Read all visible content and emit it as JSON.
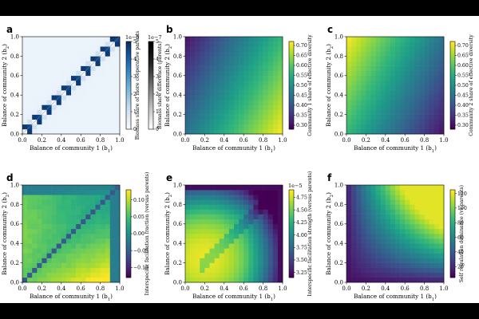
{
  "chart_data": [
    {
      "panel": "a",
      "type": "heatmap",
      "xlabel": "Balance of community 1 (b1)",
      "ylabel": "Balance of community 2 (b2)",
      "xlim": [
        0,
        1
      ],
      "ylim": [
        0,
        1
      ],
      "xticks": [
        "0.0",
        "0.2",
        "0.4",
        "0.6",
        "0.8",
        "1.0"
      ],
      "yticks": [
        "0.0",
        "0.2",
        "0.4",
        "0.6",
        "0.8",
        "1.0"
      ],
      "grid_n": 20,
      "pattern": "diagonal_checker",
      "colorbars": [
        {
          "label": "Biomass share of more cooperative parents",
          "cmap": "blues",
          "min": 0,
          "max": 5,
          "ticks": [
            "0",
            "1",
            "2",
            "3",
            "4",
            "5"
          ],
          "exponent": "1e−5"
        },
        {
          "label": "Biomass share difference (parents)",
          "cmap": "greys",
          "min": 0,
          "max": 5,
          "ticks": [
            "0",
            "1",
            "2",
            "3",
            "4",
            "5"
          ],
          "exponent": "1e−7"
        }
      ]
    },
    {
      "panel": "b",
      "type": "heatmap",
      "xlabel": "Balance of community 1 (b1)",
      "ylabel": "Balance of community 2 (b2)",
      "xlim": [
        0,
        1
      ],
      "ylim": [
        0,
        1
      ],
      "xticks": [
        "0.0",
        "0.2",
        "0.4",
        "0.6",
        "0.8",
        "1.0"
      ],
      "yticks": [
        "0.0",
        "0.2",
        "0.4",
        "0.6",
        "0.8",
        "1.0"
      ],
      "grid_n": 20,
      "pattern": "gradient_b1",
      "vmin": 0.28,
      "vmax": 0.72,
      "colorbars": [
        {
          "label": "Community 1 share of effective diversity",
          "cmap": "viridis",
          "min": 0.28,
          "max": 0.72,
          "ticks": [
            "0.30",
            "0.35",
            "0.40",
            "0.45",
            "0.50",
            "0.55",
            "0.60",
            "0.65",
            "0.70"
          ],
          "tick_values": [
            0.3,
            0.35,
            0.4,
            0.45,
            0.5,
            0.55,
            0.6,
            0.65,
            0.7
          ],
          "exponent": ""
        }
      ]
    },
    {
      "panel": "c",
      "type": "heatmap",
      "xlabel": "Balance of community 1 (b1)",
      "ylabel": "Balance of community 2 (b2)",
      "xlim": [
        0,
        1
      ],
      "ylim": [
        0,
        1
      ],
      "xticks": [
        "0.0",
        "0.2",
        "0.4",
        "0.6",
        "0.8",
        "1.0"
      ],
      "yticks": [
        "0.0",
        "0.2",
        "0.4",
        "0.6",
        "0.8",
        "1.0"
      ],
      "grid_n": 20,
      "pattern": "gradient_b2",
      "vmin": 0.28,
      "vmax": 0.72,
      "colorbars": [
        {
          "label": "Community 2 share of effective diversity",
          "cmap": "viridis",
          "min": 0.28,
          "max": 0.72,
          "ticks": [
            "0.30",
            "0.35",
            "0.40",
            "0.45",
            "0.50",
            "0.55",
            "0.60",
            "0.65",
            "0.70"
          ],
          "tick_values": [
            0.3,
            0.35,
            0.4,
            0.45,
            0.5,
            0.55,
            0.6,
            0.65,
            0.7
          ],
          "exponent": ""
        }
      ]
    },
    {
      "panel": "d",
      "type": "heatmap",
      "xlabel": "Balance of community 1 (b1)",
      "ylabel": "Balance of community 2 (b2)",
      "xlim": [
        0,
        1
      ],
      "ylim": [
        0,
        1
      ],
      "xticks": [
        "0.0",
        "0.2",
        "0.4",
        "0.6",
        "0.8",
        "1.0"
      ],
      "yticks": [
        "0.0",
        "0.2",
        "0.4",
        "0.6",
        "0.8",
        "1.0"
      ],
      "grid_n": 20,
      "pattern": "interspecific_fraction",
      "vmin": -0.13,
      "vmax": 0.13,
      "colorbars": [
        {
          "label": "Interspecific facilitation fraction (versus parents)",
          "cmap": "viridis",
          "min": -0.13,
          "max": 0.13,
          "ticks": [
            "−0.10",
            "−0.05",
            "0.00",
            "0.05",
            "0.10"
          ],
          "tick_values": [
            -0.1,
            -0.05,
            0.0,
            0.05,
            0.1
          ],
          "exponent": ""
        }
      ]
    },
    {
      "panel": "e",
      "type": "heatmap",
      "xlabel": "Balance of community 1 (b1)",
      "ylabel": "Balance of community 2 (b2)",
      "xlim": [
        0,
        1
      ],
      "ylim": [
        0,
        1
      ],
      "xticks": [
        "0.0",
        "0.2",
        "0.4",
        "0.6",
        "0.8",
        "1.0"
      ],
      "yticks": [
        "0.0",
        "0.2",
        "0.4",
        "0.6",
        "0.8",
        "1.0"
      ],
      "grid_n": 20,
      "pattern": "interspecific_strength",
      "vmin": 3.15,
      "vmax": 4.9,
      "colorbars": [
        {
          "label": "Interspecific facilitation strength (versus parents)",
          "cmap": "viridis",
          "min": 3.15,
          "max": 4.9,
          "ticks": [
            "3.25",
            "3.50",
            "3.75",
            "4.00",
            "4.25",
            "4.50",
            "4.75"
          ],
          "tick_values": [
            3.25,
            3.5,
            3.75,
            4.0,
            4.25,
            4.5,
            4.75
          ],
          "exponent": "1e−5"
        }
      ]
    },
    {
      "panel": "f",
      "type": "heatmap",
      "xlabel": "Balance of community 1 (b1)",
      "ylabel": "Balance of community 2 (b2)",
      "xlim": [
        0,
        1
      ],
      "ylim": [
        0,
        1
      ],
      "xticks": [
        "0.0",
        "0.2",
        "0.4",
        "0.6",
        "0.8",
        "1.0"
      ],
      "yticks": [
        "0.0",
        "0.2",
        "0.4",
        "0.6",
        "0.8",
        "1.0"
      ],
      "grid_n": 20,
      "pattern": "self_regulation",
      "vmin": 5,
      "vmax": 125,
      "colorbars": [
        {
          "label": "Self regulation dominance (vs parents)",
          "cmap": "viridis",
          "min": 5,
          "max": 125,
          "ticks": [
            "20",
            "40",
            "60",
            "80",
            "100",
            "120"
          ],
          "tick_values": [
            20,
            40,
            60,
            80,
            100,
            120
          ],
          "exponent": ""
        }
      ]
    }
  ]
}
